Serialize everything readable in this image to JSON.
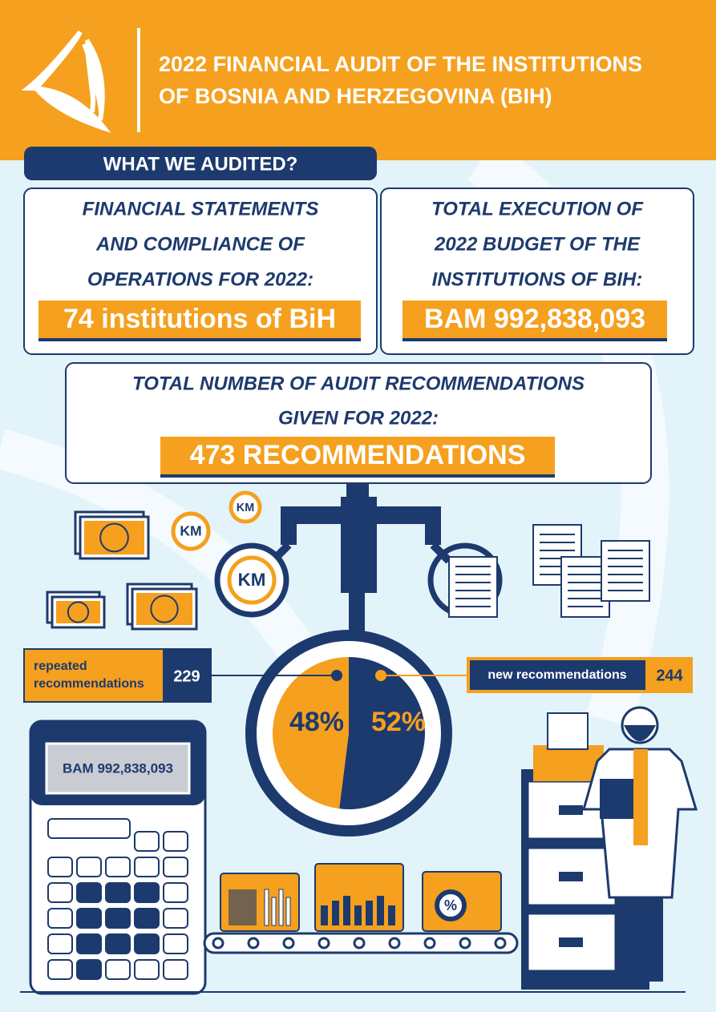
{
  "header": {
    "title_lines": [
      "2022 FINANCIAL AUDIT OF THE INSTITUTIONS",
      "OF BOSNIA AND HERZEGOVINA (BIH)"
    ]
  },
  "section_title": "WHAT WE AUDITED?",
  "cards": [
    {
      "lines": [
        "FINANCIAL STATEMENTS",
        "AND COMPLIANCE OF",
        "OPERATIONS FOR 2022:"
      ],
      "highlight": "74 institutions of BiH"
    },
    {
      "lines": [
        "TOTAL EXECUTION OF",
        "2022 BUDGET OF THE",
        "INSTITUTIONS OF BIH:"
      ],
      "highlight": "BAM 992,838,093"
    },
    {
      "lines": [
        "TOTAL NUMBER OF AUDIT RECOMMENDATIONS",
        "GIVEN FOR 2022:"
      ],
      "highlight": "473 RECOMMENDATIONS"
    }
  ],
  "coin_label": "KM",
  "calculator_display": "BAM 992,838,093",
  "folder_icon_label": "%",
  "recommendations": [
    {
      "label_lines": [
        "repeated",
        "recommendations"
      ],
      "count": 229,
      "percent": 48,
      "percent_label": "48%",
      "color": "#f5a01e"
    },
    {
      "label_lines": [
        "new recommendations"
      ],
      "count": 244,
      "percent": 52,
      "percent_label": "52%",
      "color": "#1d3a6e"
    }
  ]
}
